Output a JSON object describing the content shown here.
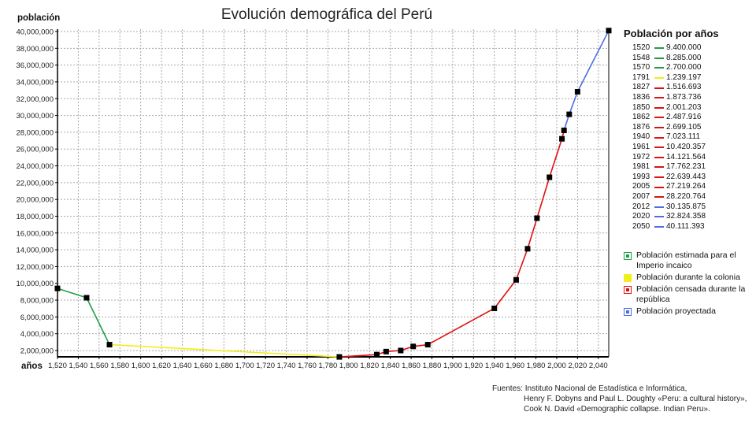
{
  "chart_data": {
    "type": "line",
    "title": "Evolución demográfica del Perú",
    "xlabel": "años",
    "ylabel": "población",
    "xlim": [
      1520,
      2050
    ],
    "ylim": [
      1239197,
      40111393
    ],
    "grid": true,
    "x_ticks": [
      "1,520",
      "1,540",
      "1,560",
      "1,580",
      "1,600",
      "1,620",
      "1,640",
      "1,660",
      "1,680",
      "1,700",
      "1,720",
      "1,740",
      "1,760",
      "1,780",
      "1,800",
      "1,820",
      "1,840",
      "1,860",
      "1,880",
      "1,900",
      "1,920",
      "1,940",
      "1,960",
      "1,980",
      "2,000",
      "2,020",
      "2,040"
    ],
    "y_ticks": [
      "2,000,000",
      "4,000,000",
      "6,000,000",
      "8,000,000",
      "10,000,000",
      "12,000,000",
      "14,000,000",
      "16,000,000",
      "18,000,000",
      "20,000,000",
      "22,000,000",
      "24,000,000",
      "26,000,000",
      "28,000,000",
      "30,000,000",
      "32,000,000",
      "34,000,000",
      "36,000,000",
      "38,000,000",
      "40,000,000"
    ],
    "points": [
      {
        "year": 1520,
        "value": 9400000,
        "label": "9.400.000",
        "series": "inca"
      },
      {
        "year": 1548,
        "value": 8285000,
        "label": "8.285.000",
        "series": "inca"
      },
      {
        "year": 1570,
        "value": 2700000,
        "label": "2.700.000",
        "series": "inca"
      },
      {
        "year": 1791,
        "value": 1239197,
        "label": "1.239.197",
        "series": "colonia"
      },
      {
        "year": 1827,
        "value": 1516693,
        "label": "1.516.693",
        "series": "republica"
      },
      {
        "year": 1836,
        "value": 1873736,
        "label": "1.873.736",
        "series": "republica"
      },
      {
        "year": 1850,
        "value": 2001203,
        "label": "2.001.203",
        "series": "republica"
      },
      {
        "year": 1862,
        "value": 2487916,
        "label": "2.487.916",
        "series": "republica"
      },
      {
        "year": 1876,
        "value": 2699105,
        "label": "2.699.105",
        "series": "republica"
      },
      {
        "year": 1940,
        "value": 7023111,
        "label": "7.023.111",
        "series": "republica"
      },
      {
        "year": 1961,
        "value": 10420357,
        "label": "10.420.357",
        "series": "republica"
      },
      {
        "year": 1972,
        "value": 14121564,
        "label": "14.121.564",
        "series": "republica"
      },
      {
        "year": 1981,
        "value": 17762231,
        "label": "17.762.231",
        "series": "republica"
      },
      {
        "year": 1993,
        "value": 22639443,
        "label": "22.639.443",
        "series": "republica"
      },
      {
        "year": 2005,
        "value": 27219264,
        "label": "27.219.264",
        "series": "republica"
      },
      {
        "year": 2007,
        "value": 28220764,
        "label": "28.220.764",
        "series": "republica"
      },
      {
        "year": 2012,
        "value": 30135875,
        "label": "30.135.875",
        "series": "proyectada"
      },
      {
        "year": 2020,
        "value": 32824358,
        "label": "32.824.358",
        "series": "proyectada"
      },
      {
        "year": 2050,
        "value": 40111393,
        "label": "40.111.393",
        "series": "proyectada"
      }
    ],
    "series": [
      {
        "key": "inca",
        "name": "Población estimada para el Imperio incaico",
        "color": "#1e9e46"
      },
      {
        "key": "colonia",
        "name": "Población durante la colonia",
        "color": "#f2ee1a"
      },
      {
        "key": "republica",
        "name": "Población censada durante la república",
        "color": "#e01010"
      },
      {
        "key": "proyectada",
        "name": "Población proyectada",
        "color": "#4a6ee0"
      }
    ],
    "legend_title": "Población por años",
    "legend_placement": "right"
  },
  "sources": {
    "label": "Fuentes:",
    "lines": [
      "Instituto Nacional de Estadística e Informática,",
      "Henry F. Dobyns and Paul L. Doughty  «Peru: a cultural history»,",
      "Cook N. David «Demographic collapse. Indian Peru»."
    ]
  }
}
